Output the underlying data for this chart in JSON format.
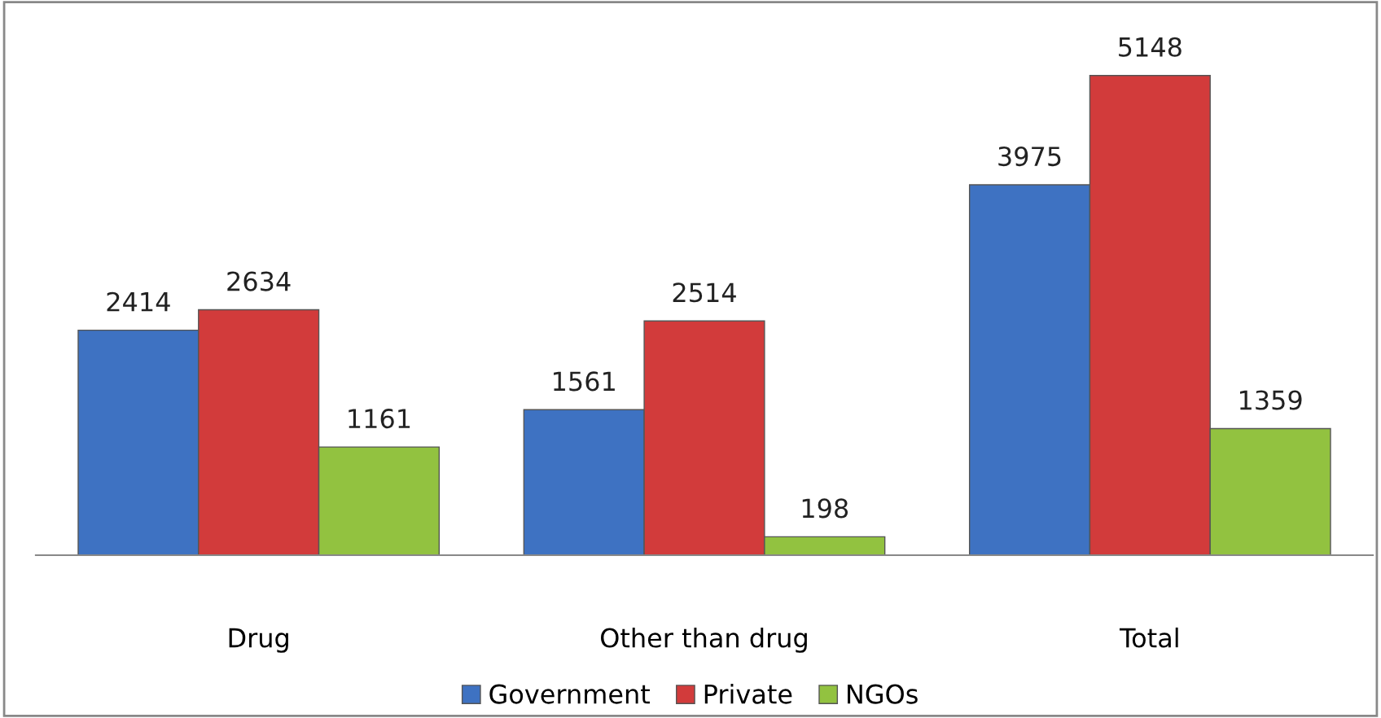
{
  "chart_data": {
    "type": "bar",
    "categories": [
      "Drug",
      "Other than drug",
      "Total"
    ],
    "series": [
      {
        "name": "Government",
        "color": "#3e72c2",
        "values": [
          2414,
          1561,
          3975
        ]
      },
      {
        "name": "Private",
        "color": "#d23b3b",
        "values": [
          2634,
          2514,
          5148
        ]
      },
      {
        "name": "NGOs",
        "color": "#92c240",
        "values": [
          1161,
          198,
          1359
        ]
      }
    ],
    "data_labels": true,
    "legend": "bottom",
    "grid": false
  }
}
